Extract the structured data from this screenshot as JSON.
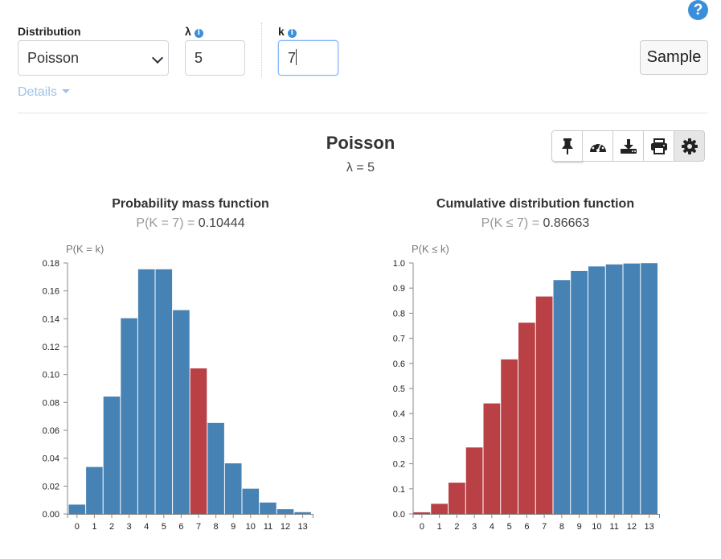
{
  "help": {
    "glyph": "?"
  },
  "controls": {
    "distribution": {
      "label": "Distribution",
      "value": "Poisson"
    },
    "lambda": {
      "label": "λ",
      "value": "5"
    },
    "k": {
      "label": "k",
      "value": "7"
    },
    "info_glyph": "i",
    "sample_label": "Sample",
    "details_label": "Details"
  },
  "toolbar": {
    "icons": [
      "pin-icon",
      "dashboard-icon",
      "download-icon",
      "print-icon",
      "settings-icon"
    ]
  },
  "header": {
    "title": "Poisson",
    "subtitle": "λ = 5"
  },
  "colors": {
    "bar": "#4682b4",
    "highlight": "#b94045"
  },
  "pmf": {
    "title": "Probability mass function",
    "sub_prefix": "P(K = 7) = ",
    "sub_value": "0.10444"
  },
  "cdf": {
    "title": "Cumulative distribution function",
    "sub_prefix": "P(K ≤ 7) = ",
    "sub_value": "0.86663"
  },
  "chart_data": [
    {
      "type": "bar",
      "title": "Probability mass function",
      "ylabel": "P(K = k)",
      "xlabel": "",
      "categories": [
        "0",
        "1",
        "2",
        "3",
        "4",
        "5",
        "6",
        "7",
        "8",
        "9",
        "10",
        "11",
        "12",
        "13"
      ],
      "values": [
        0.0067,
        0.0337,
        0.0842,
        0.1404,
        0.1755,
        0.1755,
        0.1462,
        0.1044,
        0.0653,
        0.0363,
        0.0181,
        0.0082,
        0.0034,
        0.0013
      ],
      "highlight": [
        7
      ],
      "ylim": [
        0,
        0.18
      ],
      "yticks": [
        "0.00",
        "0.02",
        "0.04",
        "0.06",
        "0.08",
        "0.10",
        "0.12",
        "0.14",
        "0.16",
        "0.18"
      ]
    },
    {
      "type": "bar",
      "title": "Cumulative distribution function",
      "ylabel": "P(K ≤ k)",
      "xlabel": "",
      "categories": [
        "0",
        "1",
        "2",
        "3",
        "4",
        "5",
        "6",
        "7",
        "8",
        "9",
        "10",
        "11",
        "12",
        "13"
      ],
      "values": [
        0.0067,
        0.0404,
        0.1247,
        0.265,
        0.4405,
        0.616,
        0.7622,
        0.8666,
        0.9319,
        0.9682,
        0.9863,
        0.9945,
        0.998,
        0.9993
      ],
      "highlight": [
        0,
        1,
        2,
        3,
        4,
        5,
        6,
        7
      ],
      "ylim": [
        0,
        1.0
      ],
      "yticks": [
        "0.0",
        "0.1",
        "0.2",
        "0.3",
        "0.4",
        "0.5",
        "0.6",
        "0.7",
        "0.8",
        "0.9",
        "1.0"
      ]
    }
  ]
}
